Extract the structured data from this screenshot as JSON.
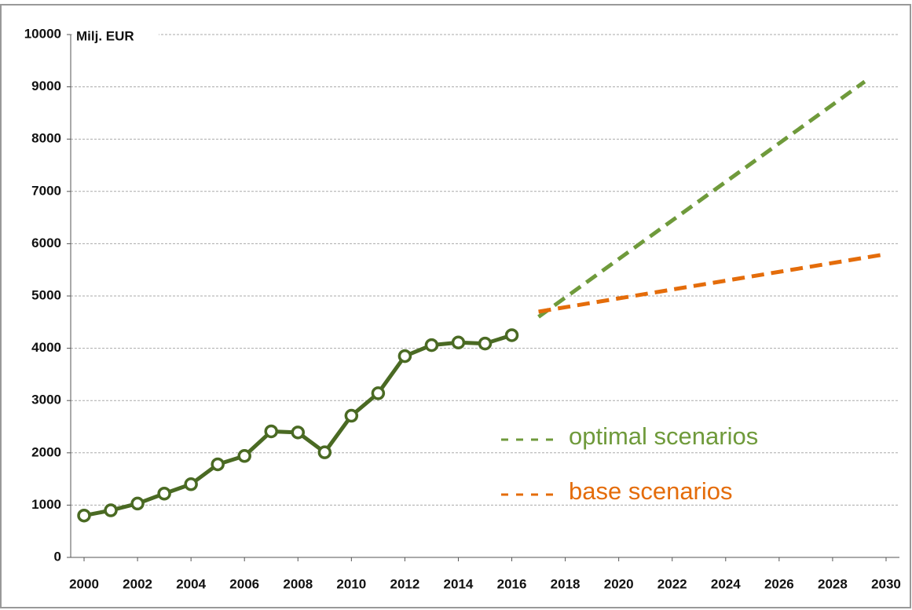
{
  "chart_data": {
    "type": "line",
    "y_label": "Milj. EUR",
    "series": [
      {
        "color": "#4a6a23",
        "markers": true,
        "dashed": false,
        "x": [
          2000,
          2001,
          2002,
          2003,
          2004,
          2005,
          2006,
          2007,
          2008,
          2009,
          2010,
          2011,
          2012,
          2013,
          2014,
          2015,
          2016
        ],
        "values": [
          800,
          900,
          1030,
          1220,
          1400,
          1780,
          1940,
          2410,
          2390,
          2010,
          2710,
          3140,
          3850,
          4060,
          4110,
          4090,
          4250
        ]
      },
      {
        "name": "optimal scenarios",
        "color": "#6f9a3b",
        "markers": false,
        "dashed": true,
        "x": [
          2017,
          2029.2
        ],
        "values": [
          4600,
          9100
        ]
      },
      {
        "name": "base scenarios",
        "color": "#e46c0a",
        "markers": false,
        "dashed": true,
        "x": [
          2017,
          2030
        ],
        "values": [
          4700,
          5800
        ]
      }
    ],
    "xlim": [
      1999.5,
      2030.5
    ],
    "xticks": [
      2000,
      2002,
      2004,
      2006,
      2008,
      2010,
      2012,
      2014,
      2016,
      2018,
      2020,
      2022,
      2024,
      2026,
      2028,
      2030
    ],
    "ylim": [
      0,
      10000
    ],
    "yticks": [
      0,
      1000,
      2000,
      3000,
      4000,
      5000,
      6000,
      7000,
      8000,
      9000,
      10000
    ],
    "grid": true
  }
}
